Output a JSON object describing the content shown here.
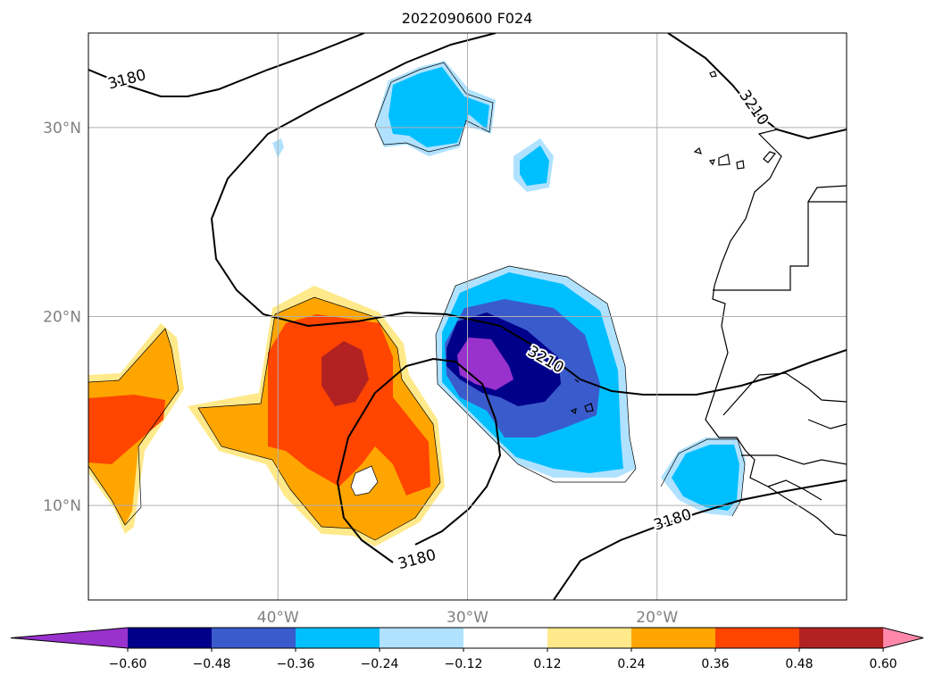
{
  "title": "2022090600 F024",
  "map": {
    "lon_range": [
      -50,
      -10
    ],
    "lat_range": [
      5,
      35
    ],
    "lon_ticks": [
      {
        "lon": -40,
        "label": "40°W"
      },
      {
        "lon": -30,
        "label": "30°W"
      },
      {
        "lon": -20,
        "label": "20°W"
      }
    ],
    "lat_ticks": [
      {
        "lat": 10,
        "label": "10°N"
      },
      {
        "lat": 20,
        "label": "20°N"
      },
      {
        "lat": 30,
        "label": "30°N"
      }
    ],
    "gridlines": true,
    "contour_labels": [
      {
        "text": "3180",
        "lon": -47.9,
        "lat": 32.3,
        "rot": -15
      },
      {
        "text": "3210",
        "lon": -15.1,
        "lat": 30.9,
        "rot": 55
      },
      {
        "text": "3210",
        "lon": -26.0,
        "lat": 17.5,
        "rot": 30
      },
      {
        "text": "3180",
        "lon": -32.6,
        "lat": 6.9,
        "rot": -15
      },
      {
        "text": "3180",
        "lon": -19.1,
        "lat": 9.0,
        "rot": -18
      }
    ]
  },
  "colorbar": {
    "colors": [
      "#9932cc",
      "#00008b",
      "#3a5bcc",
      "#00bfff",
      "#b0e2ff",
      "#ffffff",
      "#ffe98a",
      "#ffa500",
      "#ff4500",
      "#b22222",
      "#ff88aa"
    ],
    "tick_labels": [
      "−0.60",
      "−0.48",
      "−0.36",
      "−0.24",
      "−0.12",
      "0.12",
      "0.24",
      "0.36",
      "0.48",
      "0.60"
    ]
  }
}
